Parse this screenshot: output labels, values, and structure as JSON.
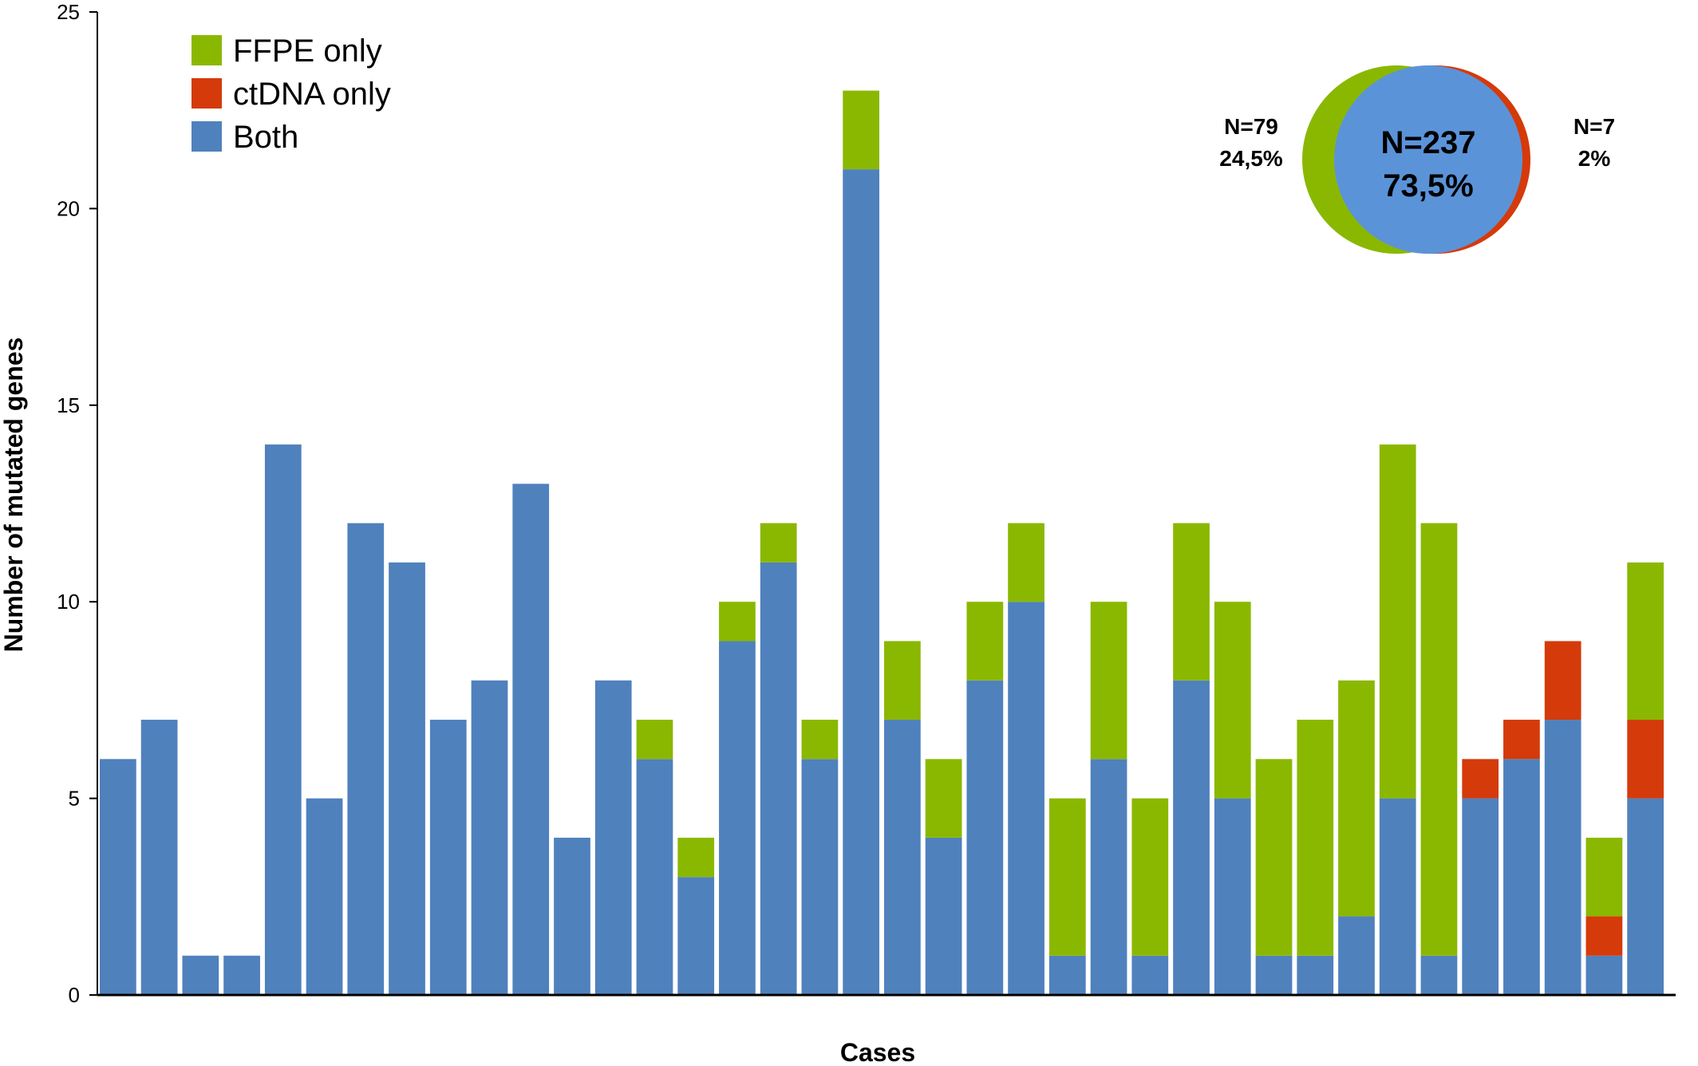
{
  "chart_data": {
    "type": "bar",
    "stacked": true,
    "xlabel": "Cases",
    "ylabel": "Number of mutated genes",
    "ylim": [
      0,
      25
    ],
    "yticks": [
      0,
      5,
      10,
      15,
      20,
      25
    ],
    "grid": false,
    "legend_position": "top-left",
    "series": [
      {
        "name": "Both",
        "color": "#4f81bd",
        "values": [
          6,
          7,
          1,
          1,
          14,
          5,
          12,
          11,
          7,
          8,
          13,
          4,
          8,
          6,
          3,
          9,
          11,
          6,
          21,
          7,
          4,
          8,
          10,
          1,
          6,
          1,
          8,
          5,
          1,
          1,
          2,
          5,
          1,
          5,
          6,
          7,
          1,
          5
        ]
      },
      {
        "name": "ctDNA only",
        "color": "#d53a0a",
        "values": [
          0,
          0,
          0,
          0,
          0,
          0,
          0,
          0,
          0,
          0,
          0,
          0,
          0,
          0,
          0,
          0,
          0,
          0,
          0,
          0,
          0,
          0,
          0,
          0,
          0,
          0,
          0,
          0,
          0,
          0,
          0,
          0,
          0,
          1,
          1,
          2,
          1,
          2
        ]
      },
      {
        "name": "FFPE only",
        "color": "#8ab800",
        "values": [
          0,
          0,
          0,
          0,
          0,
          0,
          0,
          0,
          0,
          0,
          0,
          0,
          0,
          1,
          1,
          1,
          1,
          1,
          2,
          2,
          2,
          2,
          2,
          4,
          4,
          4,
          4,
          5,
          5,
          6,
          6,
          9,
          11,
          0,
          0,
          0,
          2,
          4
        ]
      }
    ],
    "legend_order": [
      "FFPE only",
      "ctDNA only",
      "Both"
    ],
    "venn": {
      "center": {
        "line1": "N=237",
        "line2": "73,5%",
        "color": "#5b93d9"
      },
      "left": {
        "line1": "N=79",
        "line2": "24,5%",
        "color": "#8ab800"
      },
      "right": {
        "line1": "N=7",
        "line2": "2%",
        "color": "#d53a0a"
      }
    }
  }
}
